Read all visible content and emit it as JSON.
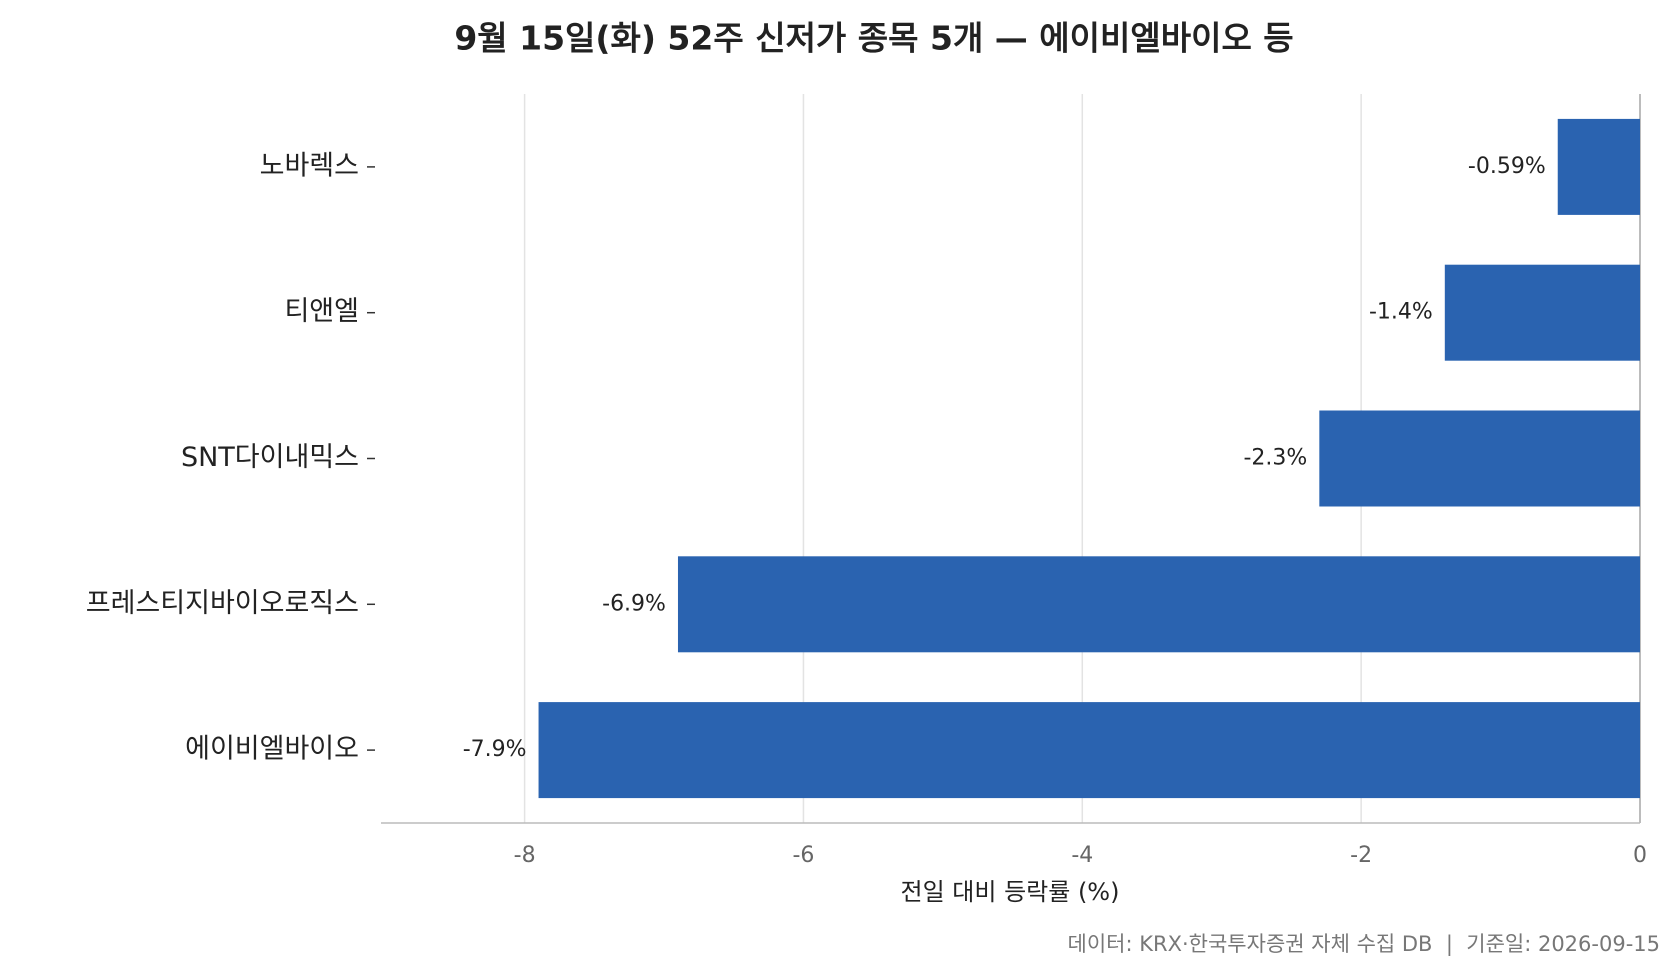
{
  "chart_data": {
    "type": "barh",
    "title": "9월 15일(화) 52주 신저가 종목 5개 — 에이비엘바이오 등",
    "categories": [
      "노바렉스",
      "티앤엘",
      "SNT다이내믹스",
      "프레스티지바이오로직스",
      "에이비엘바이오"
    ],
    "values": [
      -0.59,
      -1.4,
      -2.3,
      -6.9,
      -7.9
    ],
    "value_labels": [
      "-0.59%",
      "-1.4%",
      "-2.3%",
      "-6.9%",
      "-7.9%"
    ],
    "color": "#2a63b0",
    "xlim": [
      -9.03,
      0
    ],
    "xticks": [
      -8,
      -6,
      -4,
      -2,
      0
    ],
    "grid": true,
    "xlabel": "전일 대비 등락률 (%)",
    "source": "데이터: KRX·한국투자증권 자체 수집 DB  |  기준일: 2026-09-15"
  }
}
